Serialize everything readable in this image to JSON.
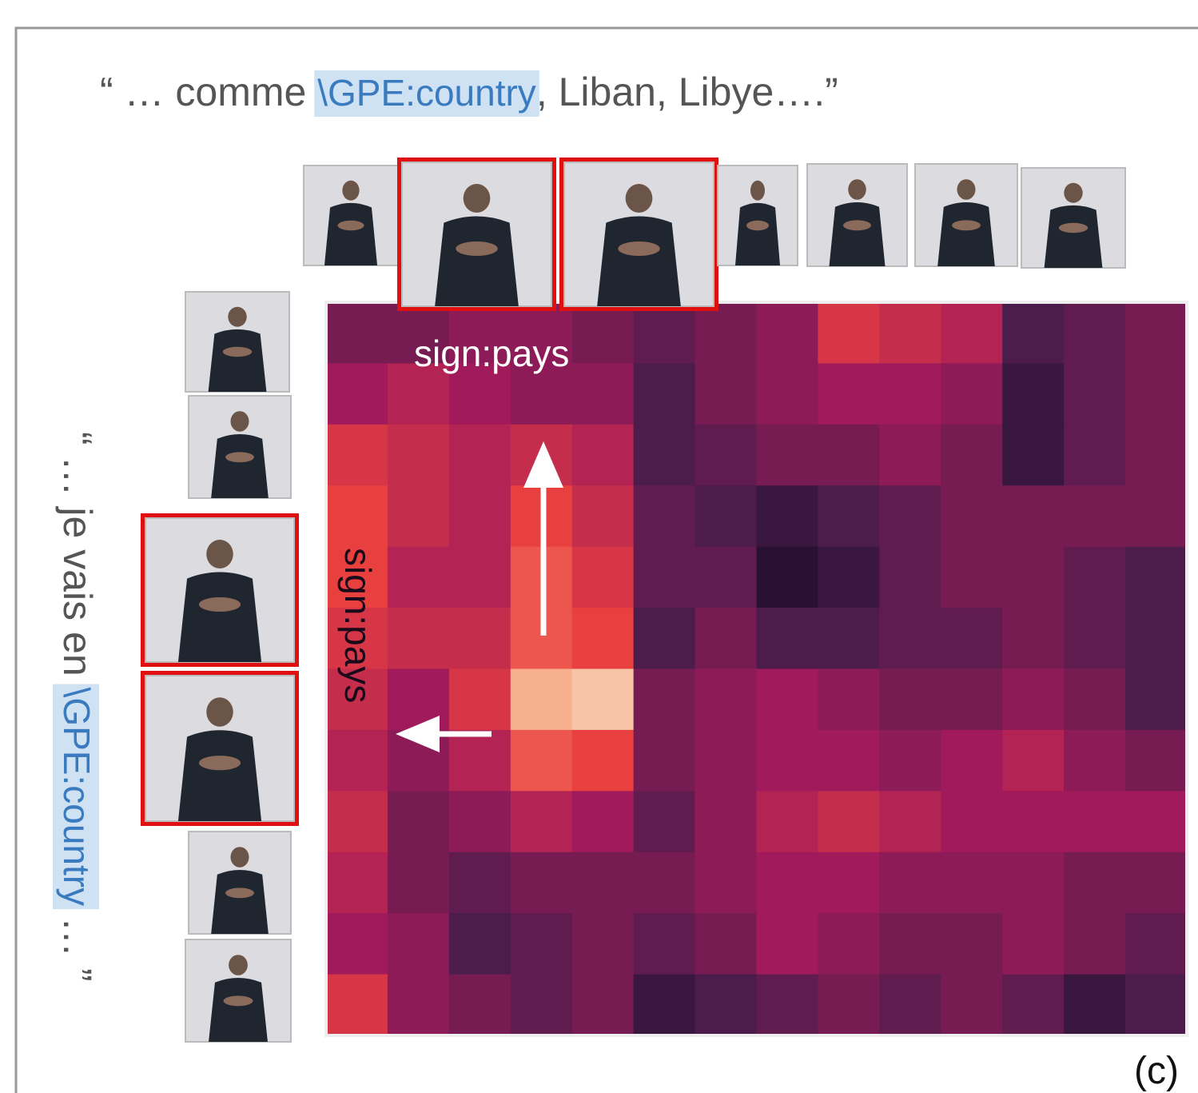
{
  "top_quote": {
    "before": "“ … comme ",
    "entity": "\\GPE:country",
    "after": ", Liban, Libye….”"
  },
  "side_quote": {
    "before": "“ … je vais en ",
    "entity": "\\GPE:country",
    "after": " … ”"
  },
  "labels": {
    "top_sign": "sign:pays",
    "side_sign": "sign:pays",
    "panel": "(c)"
  },
  "heatmap": {
    "values": [
      [
        0.3,
        0.3,
        0.35,
        0.35,
        0.3,
        0.25,
        0.3,
        0.35,
        0.55,
        0.5,
        0.45,
        0.2,
        0.25,
        0.3
      ],
      [
        0.4,
        0.45,
        0.4,
        0.35,
        0.35,
        0.2,
        0.3,
        0.35,
        0.4,
        0.4,
        0.35,
        0.15,
        0.25,
        0.3
      ],
      [
        0.55,
        0.5,
        0.45,
        0.5,
        0.45,
        0.2,
        0.25,
        0.3,
        0.3,
        0.35,
        0.3,
        0.15,
        0.25,
        0.3
      ],
      [
        0.6,
        0.5,
        0.45,
        0.6,
        0.5,
        0.25,
        0.2,
        0.15,
        0.2,
        0.25,
        0.3,
        0.3,
        0.3,
        0.3
      ],
      [
        0.6,
        0.45,
        0.45,
        0.65,
        0.55,
        0.25,
        0.25,
        0.1,
        0.15,
        0.25,
        0.3,
        0.3,
        0.25,
        0.2
      ],
      [
        0.55,
        0.5,
        0.5,
        0.65,
        0.6,
        0.2,
        0.3,
        0.2,
        0.2,
        0.25,
        0.25,
        0.3,
        0.25,
        0.2
      ],
      [
        0.5,
        0.4,
        0.55,
        0.85,
        0.9,
        0.3,
        0.35,
        0.4,
        0.35,
        0.3,
        0.3,
        0.35,
        0.3,
        0.2
      ],
      [
        0.45,
        0.35,
        0.45,
        0.65,
        0.6,
        0.3,
        0.35,
        0.4,
        0.4,
        0.35,
        0.4,
        0.45,
        0.35,
        0.3
      ],
      [
        0.5,
        0.3,
        0.35,
        0.45,
        0.4,
        0.25,
        0.35,
        0.45,
        0.5,
        0.45,
        0.4,
        0.4,
        0.4,
        0.4
      ],
      [
        0.45,
        0.3,
        0.25,
        0.3,
        0.3,
        0.3,
        0.35,
        0.4,
        0.4,
        0.35,
        0.35,
        0.35,
        0.3,
        0.3
      ],
      [
        0.4,
        0.35,
        0.2,
        0.25,
        0.3,
        0.25,
        0.3,
        0.4,
        0.35,
        0.3,
        0.3,
        0.35,
        0.3,
        0.25
      ],
      [
        0.55,
        0.35,
        0.3,
        0.25,
        0.3,
        0.15,
        0.2,
        0.25,
        0.3,
        0.25,
        0.3,
        0.25,
        0.15,
        0.2
      ]
    ]
  }
}
